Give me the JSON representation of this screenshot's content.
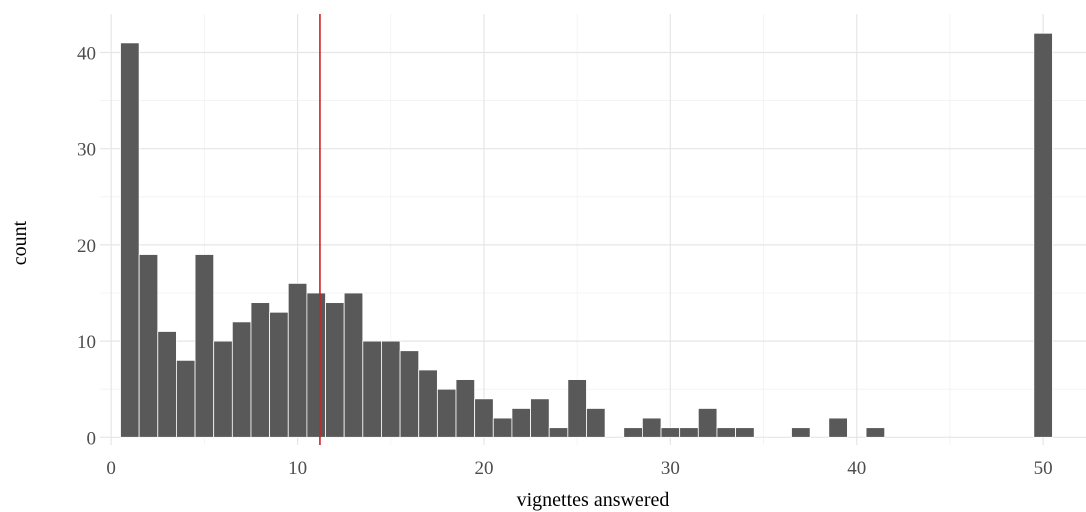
{
  "chart_data": {
    "type": "bar",
    "xlabel": "vignettes answered",
    "ylabel": "count",
    "xlim": [
      -0.6,
      52.3
    ],
    "ylim": [
      -0.8,
      44
    ],
    "x_ticks": [
      0,
      10,
      20,
      30,
      40,
      50
    ],
    "y_ticks": [
      0,
      10,
      20,
      30,
      40
    ],
    "grid": true,
    "bin_width": 1,
    "x": [
      1,
      2,
      3,
      4,
      5,
      6,
      7,
      8,
      9,
      10,
      11,
      12,
      13,
      14,
      15,
      16,
      17,
      18,
      19,
      20,
      21,
      22,
      23,
      24,
      25,
      26,
      27,
      28,
      29,
      30,
      31,
      32,
      33,
      34,
      35,
      36,
      37,
      38,
      39,
      40,
      41,
      42,
      43,
      44,
      45,
      46,
      47,
      48,
      49,
      50
    ],
    "values": [
      41,
      19,
      11,
      8,
      19,
      10,
      12,
      14,
      13,
      16,
      15,
      14,
      15,
      10,
      10,
      9,
      7,
      5,
      6,
      4,
      2,
      3,
      4,
      1,
      6,
      3,
      0,
      1,
      2,
      1,
      1,
      3,
      1,
      1,
      0,
      0,
      1,
      0,
      2,
      0,
      1,
      0,
      0,
      0,
      0,
      0,
      0,
      0,
      0,
      42
    ],
    "reference_line": {
      "x": 11.2,
      "color": "#cc2222"
    },
    "bar_color": "#595959"
  }
}
